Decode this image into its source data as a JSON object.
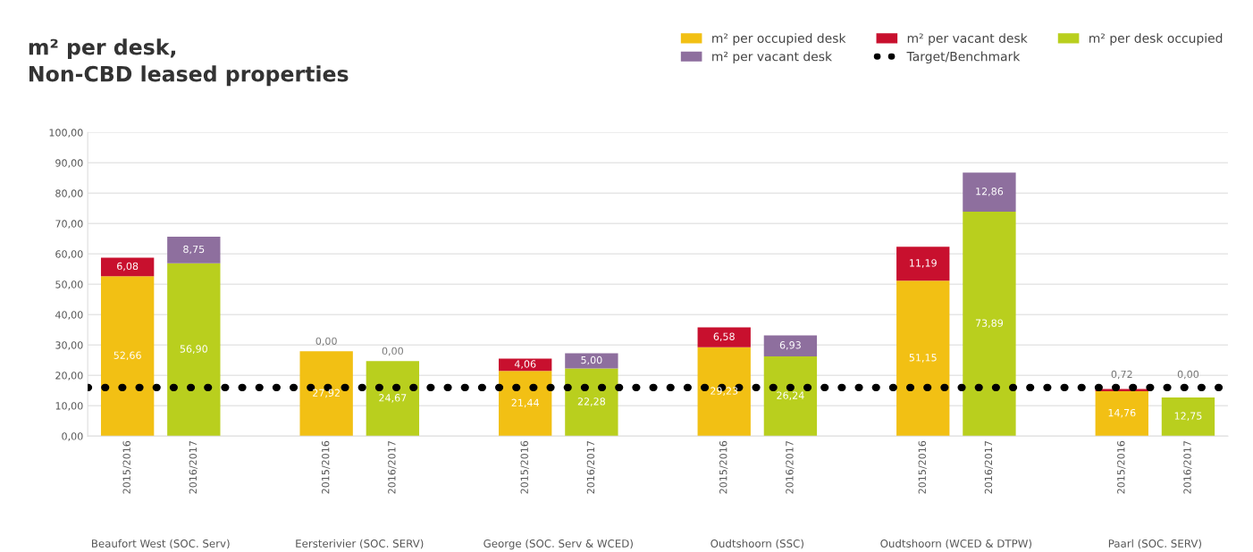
{
  "chart_data": {
    "type": "bar",
    "stacked": true,
    "title": "m² per desk,\nNon-CBD leased properties",
    "categories": [
      "2015/2016",
      "2016/2017",
      null,
      "2015/2016",
      "2016/2017",
      null,
      "2015/2016",
      "2016/2017",
      null,
      "2015/2016",
      "2016/2017",
      null,
      "2015/2016",
      "2016/2017",
      null,
      "2015/2016",
      "2016/2017"
    ],
    "series": [
      {
        "name": "m² per occupied desk",
        "color": "#f2c014",
        "values": [
          52.66,
          null,
          null,
          27.92,
          null,
          null,
          21.44,
          null,
          null,
          29.23,
          null,
          null,
          51.15,
          null,
          null,
          14.76,
          null
        ],
        "value_labels": [
          "52,66",
          null,
          null,
          "27,92",
          null,
          null,
          "21,44",
          null,
          null,
          "29,23",
          null,
          null,
          "51,15",
          null,
          null,
          "14,76",
          null
        ]
      },
      {
        "name": "m² per vacant desk",
        "color": "#c8102e",
        "values": [
          6.08,
          null,
          null,
          0.0,
          null,
          null,
          4.06,
          null,
          null,
          6.58,
          null,
          null,
          11.19,
          null,
          null,
          0.72,
          null
        ],
        "value_labels": [
          "6,08",
          null,
          null,
          "0,00",
          null,
          null,
          "4,06",
          null,
          null,
          "6,58",
          null,
          null,
          "11,19",
          null,
          null,
          "0,72",
          null
        ]
      },
      {
        "name": "m² per desk occupied",
        "color": "#b9cf1e",
        "values": [
          null,
          56.9,
          null,
          null,
          24.67,
          null,
          null,
          22.28,
          null,
          null,
          26.24,
          null,
          null,
          73.89,
          null,
          null,
          12.75
        ],
        "value_labels": [
          null,
          "56,90",
          null,
          null,
          "24,67",
          null,
          null,
          "22,28",
          null,
          null,
          "26,24",
          null,
          null,
          "73,89",
          null,
          null,
          "12,75"
        ]
      },
      {
        "name": "m² per vacant desk",
        "color": "#8e6f9e",
        "values": [
          null,
          8.75,
          null,
          null,
          0.0,
          null,
          null,
          5.0,
          null,
          null,
          6.93,
          null,
          null,
          12.86,
          null,
          null,
          0.0
        ],
        "value_labels": [
          null,
          "8,75",
          null,
          null,
          "0,00",
          null,
          null,
          "5,00",
          null,
          null,
          "6,93",
          null,
          null,
          "12,86",
          null,
          null,
          "0,00"
        ]
      }
    ],
    "ref_lines": [
      {
        "axis": "y",
        "value": 16,
        "label": "Target/Benchmark",
        "color": "#000000",
        "line_style": "dotted"
      }
    ],
    "annotations": [
      "Beaufort West (SOC. Serv)",
      "Eersterivier (SOC. SERV)",
      "George (SOC. Serv & WCED)",
      "Oudtshoorn (SSC)",
      "Oudtshoorn (WCED & DTPW)",
      "Paarl (SOC. SERV)"
    ],
    "ylim": [
      0,
      100
    ],
    "yticks": [
      {
        "value": 0,
        "label": "0,00"
      },
      {
        "value": 10,
        "label": "10,00"
      },
      {
        "value": 20,
        "label": "20,00"
      },
      {
        "value": 30,
        "label": "30,00"
      },
      {
        "value": 40,
        "label": "40,00"
      },
      {
        "value": 50,
        "label": "50,00"
      },
      {
        "value": 60,
        "label": "60,00"
      },
      {
        "value": 70,
        "label": "70,00"
      },
      {
        "value": 80,
        "label": "80,00"
      },
      {
        "value": 90,
        "label": "90,00"
      },
      {
        "value": 100,
        "label": "100,00"
      }
    ],
    "grid": "y",
    "legend": "top right"
  }
}
